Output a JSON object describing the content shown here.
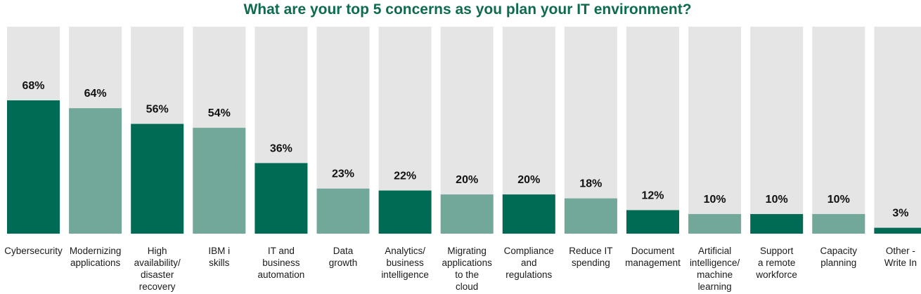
{
  "chart_data": {
    "type": "bar",
    "title": "What are your top 5 concerns as you plan your IT environment?",
    "categories": [
      [
        "Cybersecurity"
      ],
      [
        "Modernizing",
        "applications"
      ],
      [
        "High",
        "availability/",
        "disaster",
        "recovery"
      ],
      [
        "IBM i",
        "skills"
      ],
      [
        "IT and",
        "business",
        "automation"
      ],
      [
        "Data",
        "growth"
      ],
      [
        "Analytics/",
        "business",
        "intelligence"
      ],
      [
        "Migrating",
        "applications",
        "to the",
        "cloud"
      ],
      [
        "Compliance",
        "and",
        "regulations"
      ],
      [
        "Reduce IT",
        "spending"
      ],
      [
        "Document",
        "management"
      ],
      [
        "Artificial",
        "intelligence/",
        "machine",
        "learning"
      ],
      [
        "Support",
        "a remote",
        "workforce"
      ],
      [
        "Capacity",
        "planning"
      ],
      [
        "Other -",
        "Write In"
      ]
    ],
    "values": [
      68,
      64,
      56,
      54,
      36,
      23,
      22,
      20,
      20,
      18,
      12,
      10,
      10,
      10,
      3
    ],
    "value_labels": [
      "68%",
      "64%",
      "56%",
      "54%",
      "36%",
      "23%",
      "22%",
      "20%",
      "20%",
      "18%",
      "12%",
      "10%",
      "10%",
      "10%",
      "3%"
    ],
    "ylim": [
      0,
      100
    ],
    "xlabel": "",
    "ylabel": "",
    "colors": {
      "dark": "#006b54",
      "light": "#72a89a",
      "background_bar": "#e5e5e5",
      "title": "#0e6b50"
    }
  }
}
